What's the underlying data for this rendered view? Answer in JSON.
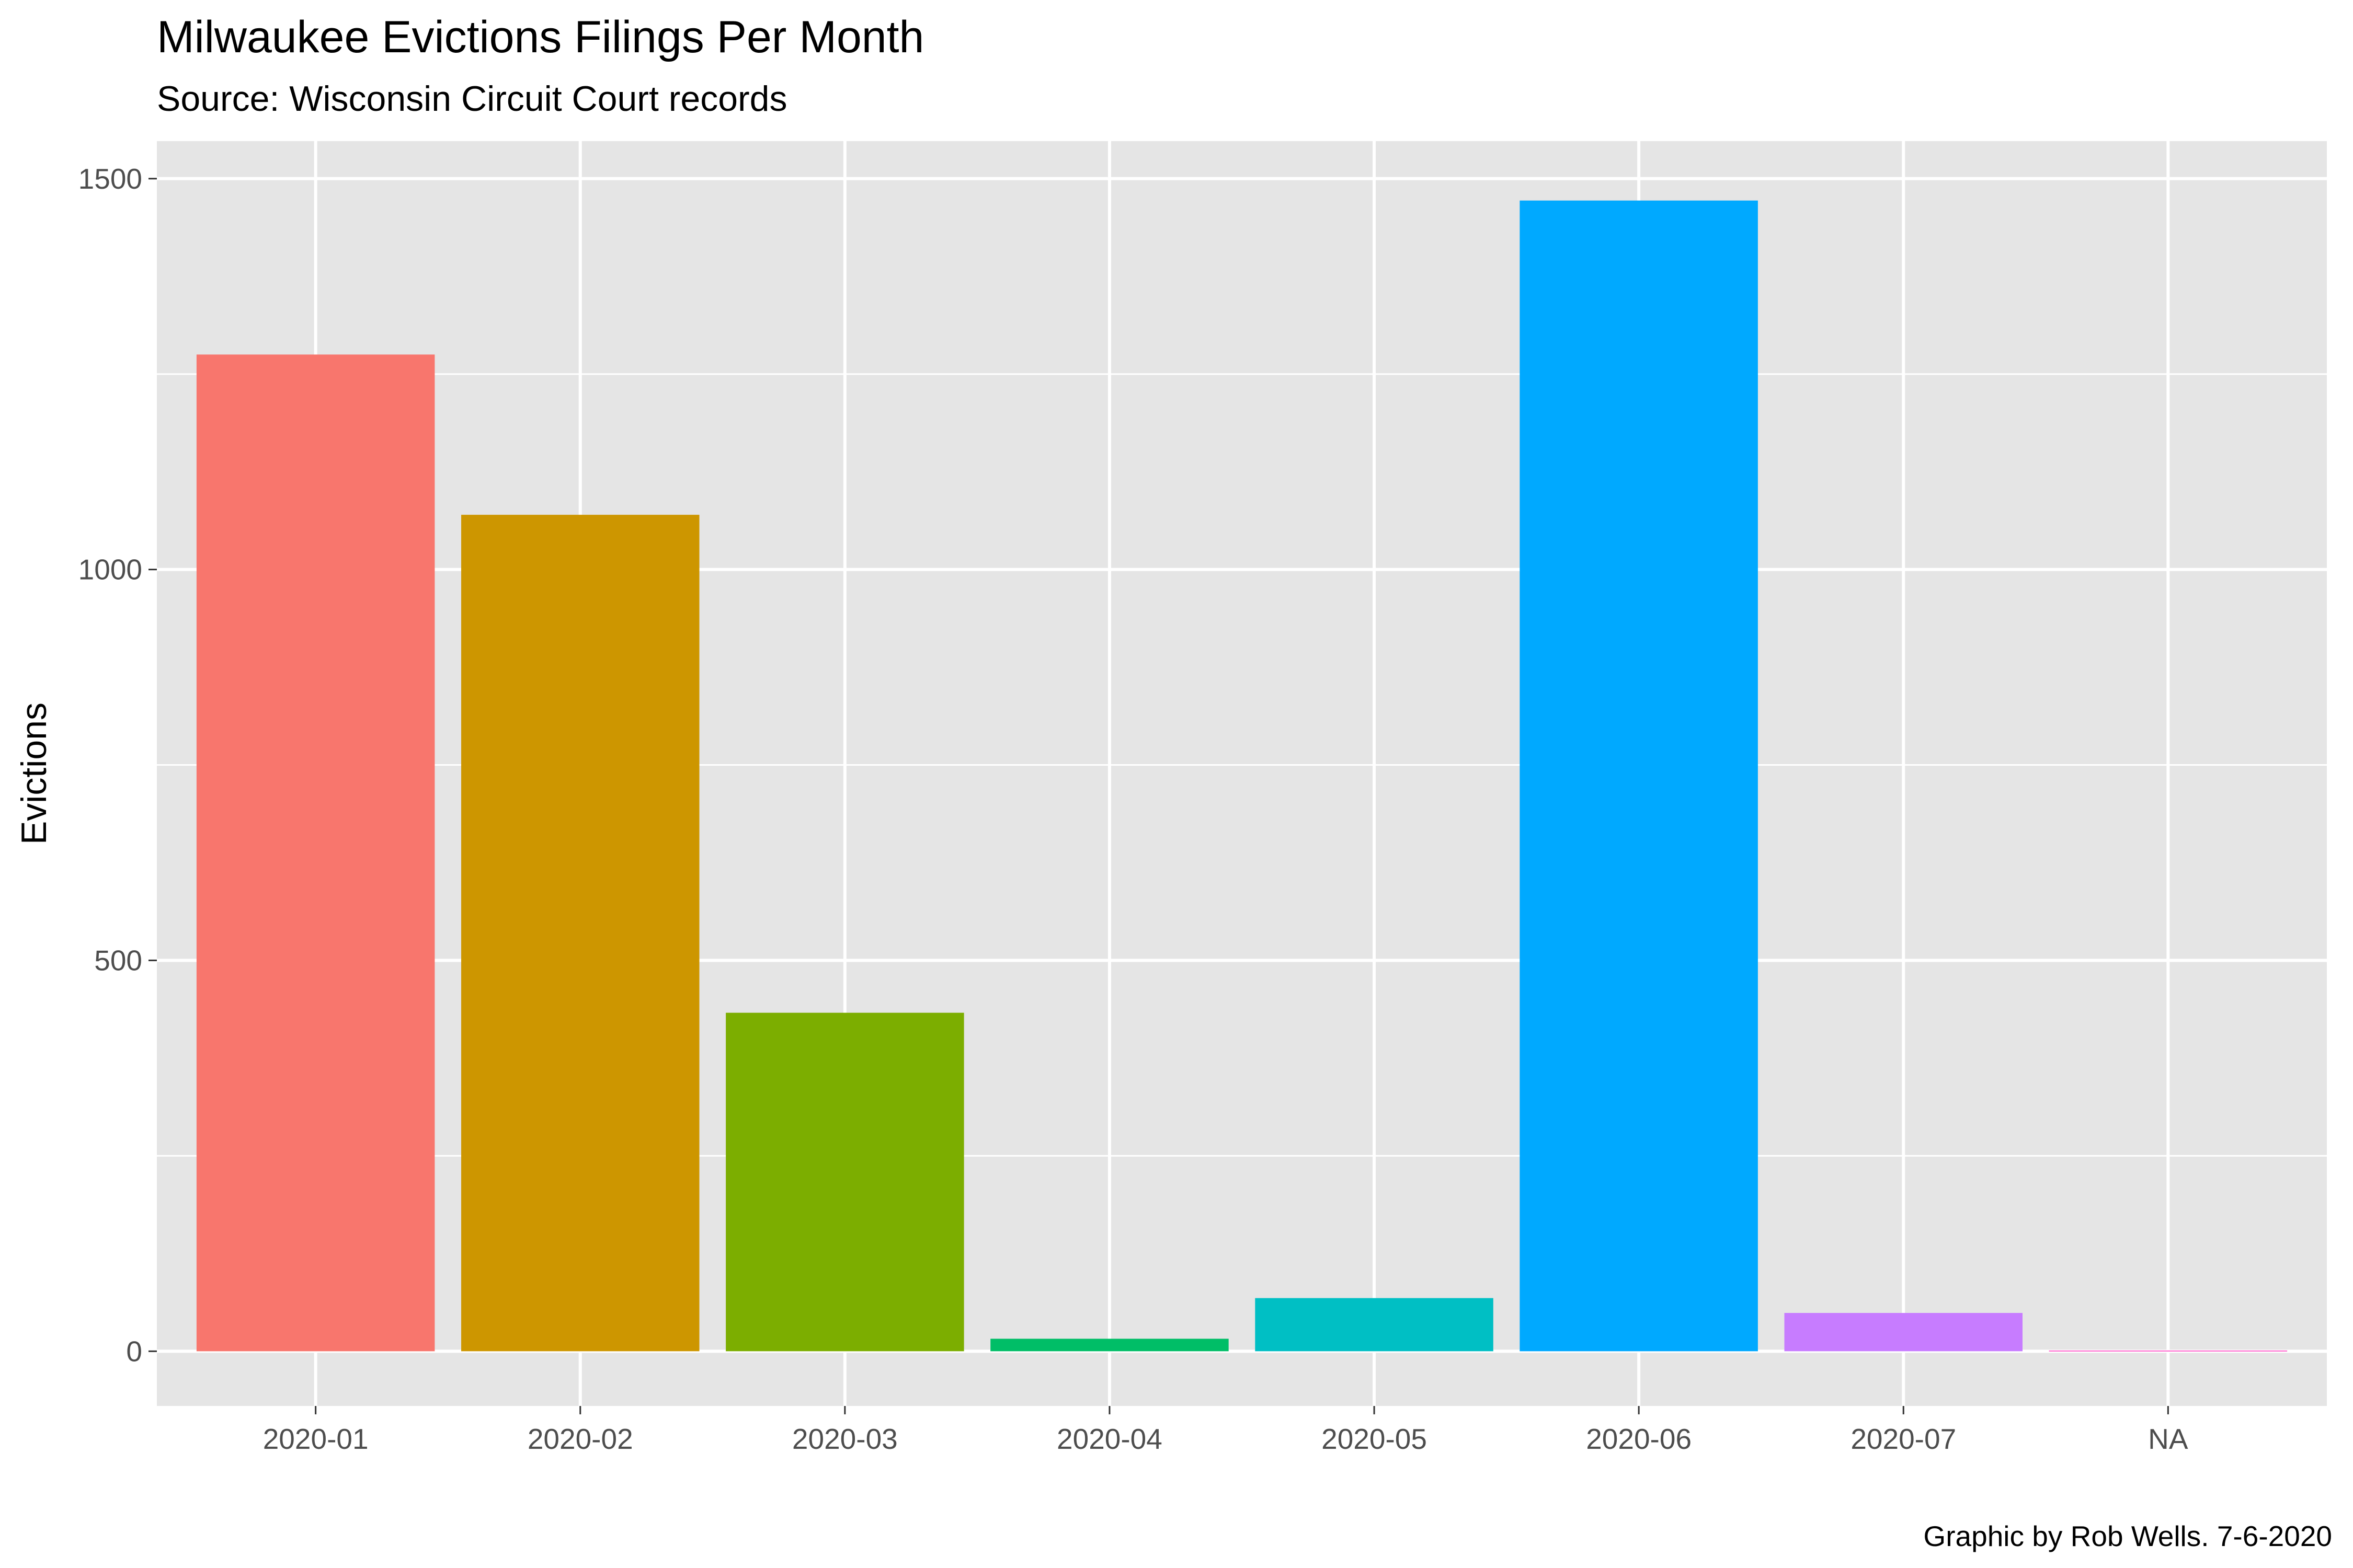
{
  "chart_data": {
    "type": "bar",
    "title": "Milwaukee Evictions Filings Per Month",
    "subtitle": "Source: Wisconsin Circuit Court records",
    "xlabel": "",
    "ylabel": "Evictions",
    "caption": "Graphic by Rob Wells. 7-6-2020",
    "categories": [
      "2020-01",
      "2020-02",
      "2020-03",
      "2020-04",
      "2020-05",
      "2020-06",
      "2020-07",
      "NA"
    ],
    "values": [
      1275,
      1070,
      433,
      16,
      68,
      1472,
      49,
      1
    ],
    "colors": [
      "#F8766D",
      "#CD9600",
      "#7CAE00",
      "#00BE67",
      "#00BFC4",
      "#00A9FF",
      "#C77CFF",
      "#FF61CC"
    ],
    "ylim": [
      -70,
      1548
    ],
    "y_ticks": [
      0,
      500,
      1000,
      1500
    ],
    "y_tick_labels": [
      "0",
      "500",
      "1000",
      "1500"
    ],
    "y_minor_ticks": [
      250,
      750,
      1250
    ],
    "grid": true,
    "legend": "none",
    "panel_background": "#E5E5E5",
    "grid_color": "#FFFFFF"
  }
}
